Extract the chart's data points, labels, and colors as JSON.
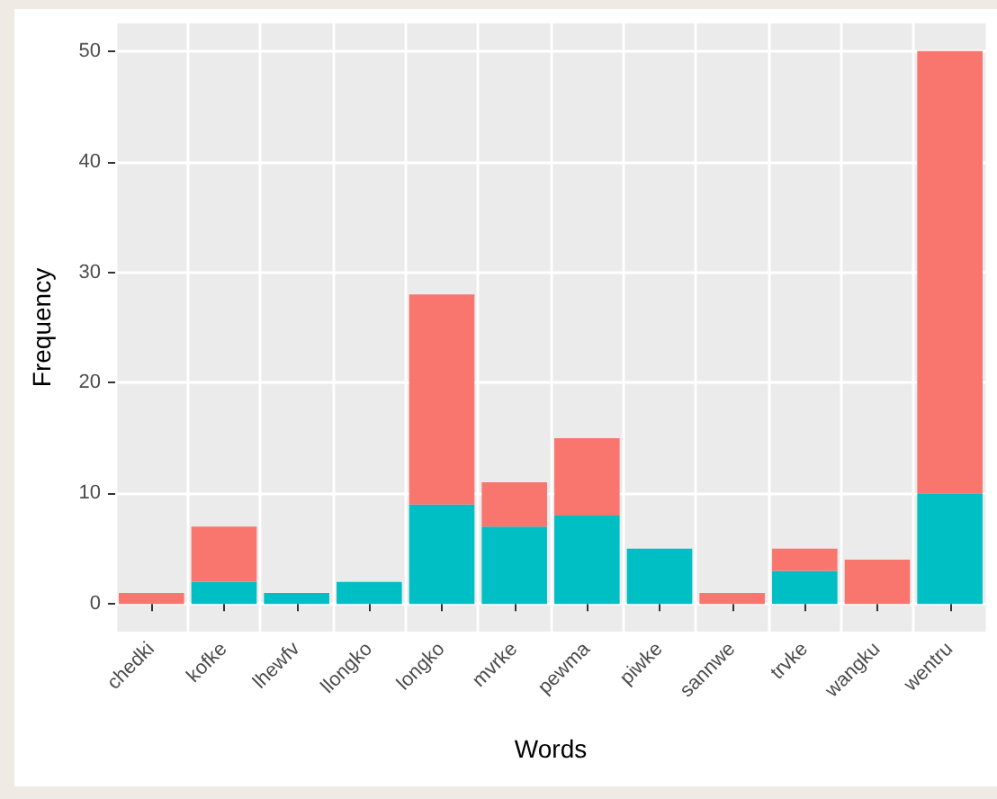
{
  "chart_data": {
    "type": "bar",
    "stacked": true,
    "xlabel": "Words",
    "ylabel": "Frequency",
    "categories": [
      "chedki",
      "kofke",
      "lhewfv",
      "llongko",
      "longko",
      "mvrke",
      "pewma",
      "piwke",
      "sannwe",
      "trvke",
      "wangku",
      "wentru"
    ],
    "series": [
      {
        "color": "#00bfc4",
        "values": [
          0,
          2,
          1,
          2,
          9,
          7,
          8,
          5,
          0,
          3,
          0,
          10
        ]
      },
      {
        "color": "#f8766d",
        "values": [
          1,
          5,
          0,
          0,
          19,
          4,
          7,
          0,
          1,
          2,
          4,
          40
        ]
      }
    ],
    "ylim": [
      -2.5,
      52.5
    ],
    "yticks": [
      0,
      10,
      20,
      30,
      40,
      50
    ],
    "grid": true
  }
}
